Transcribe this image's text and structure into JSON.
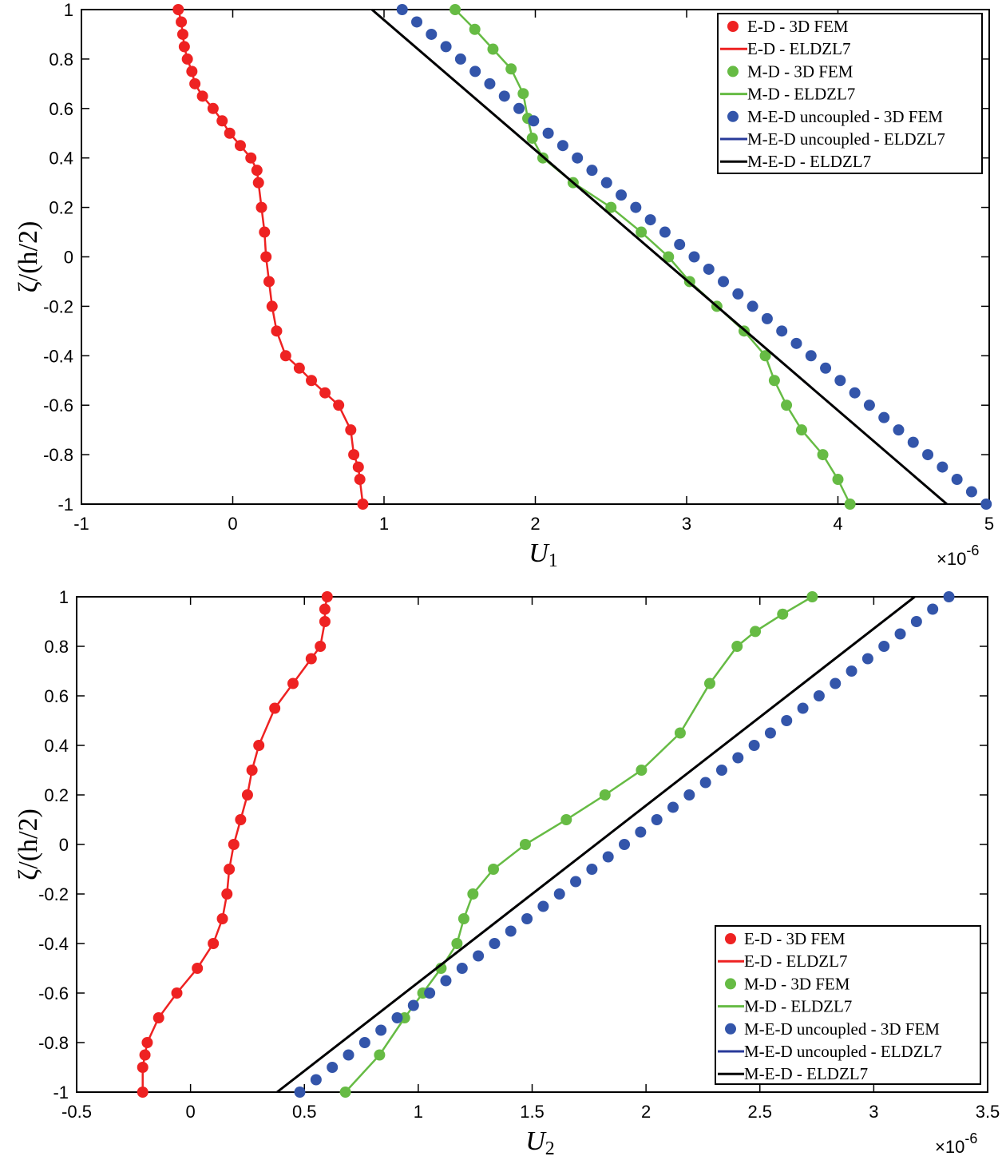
{
  "chart_data": [
    {
      "type": "line",
      "xlabel": "U",
      "xlabel_sub": "1",
      "ylabel": "ζ/(h/2)",
      "xlim": [
        -1,
        5
      ],
      "ylim": [
        -1,
        1
      ],
      "xticks": [
        "-1",
        "0",
        "1",
        "2",
        "3",
        "4",
        "5"
      ],
      "xtick_values": [
        -1,
        0,
        1,
        2,
        3,
        4,
        5
      ],
      "yticks": [
        "-1",
        "-0.8",
        "-0.6",
        "-0.4",
        "-0.2",
        "0",
        "0.2",
        "0.4",
        "0.6",
        "0.8",
        "1"
      ],
      "ytick_values": [
        -1,
        -0.8,
        -0.6,
        -0.4,
        -0.2,
        0,
        0.2,
        0.4,
        0.6,
        0.8,
        1
      ],
      "x_exponent_prefix": "×10",
      "x_exponent": "-6",
      "grid": false,
      "legend_position": "top-right",
      "series": [
        {
          "name": "E-D - 3D FEM",
          "kind": "markers",
          "color": "#ee2222",
          "x": [
            -0.36,
            -0.34,
            -0.33,
            -0.32,
            -0.3,
            -0.27,
            -0.25,
            -0.2,
            -0.13,
            -0.07,
            -0.02,
            0.05,
            0.12,
            0.16,
            0.17,
            0.19,
            0.21,
            0.22,
            0.24,
            0.26,
            0.29,
            0.35,
            0.44,
            0.52,
            0.61,
            0.7,
            0.78,
            0.8,
            0.83,
            0.84,
            0.86
          ],
          "y": [
            1,
            0.95,
            0.9,
            0.85,
            0.8,
            0.75,
            0.7,
            0.65,
            0.6,
            0.55,
            0.5,
            0.45,
            0.4,
            0.35,
            0.3,
            0.2,
            0.1,
            0,
            -0.1,
            -0.2,
            -0.3,
            -0.4,
            -0.45,
            -0.5,
            -0.55,
            -0.6,
            -0.7,
            -0.8,
            -0.85,
            -0.9,
            -1
          ]
        },
        {
          "name": "E-D - ELDZL7",
          "kind": "line",
          "color": "#ee2222",
          "x": [
            -0.36,
            -0.34,
            -0.33,
            -0.32,
            -0.3,
            -0.27,
            -0.25,
            -0.2,
            -0.13,
            -0.07,
            -0.02,
            0.05,
            0.12,
            0.16,
            0.17,
            0.19,
            0.21,
            0.22,
            0.24,
            0.26,
            0.29,
            0.35,
            0.44,
            0.52,
            0.61,
            0.7,
            0.78,
            0.8,
            0.83,
            0.84,
            0.86
          ],
          "y": [
            1,
            0.95,
            0.9,
            0.85,
            0.8,
            0.75,
            0.7,
            0.65,
            0.6,
            0.55,
            0.5,
            0.45,
            0.4,
            0.35,
            0.3,
            0.2,
            0.1,
            0,
            -0.1,
            -0.2,
            -0.3,
            -0.4,
            -0.45,
            -0.5,
            -0.55,
            -0.6,
            -0.7,
            -0.8,
            -0.85,
            -0.9,
            -1
          ]
        },
        {
          "name": "M-D - 3D FEM",
          "kind": "markers",
          "color": "#66bb44",
          "x": [
            1.47,
            1.6,
            1.72,
            1.84,
            1.92,
            1.95,
            1.98,
            2.05,
            2.25,
            2.5,
            2.7,
            2.88,
            3.02,
            3.2,
            3.38,
            3.52,
            3.58,
            3.66,
            3.76,
            3.9,
            4.0,
            4.08
          ],
          "y": [
            1,
            0.92,
            0.84,
            0.76,
            0.66,
            0.56,
            0.48,
            0.4,
            0.3,
            0.2,
            0.1,
            0,
            -0.1,
            -0.2,
            -0.3,
            -0.4,
            -0.5,
            -0.6,
            -0.7,
            -0.8,
            -0.9,
            -1
          ]
        },
        {
          "name": "M-D - ELDZL7",
          "kind": "line",
          "color": "#66bb44",
          "x": [
            1.47,
            1.6,
            1.72,
            1.84,
            1.92,
            1.95,
            1.98,
            2.05,
            2.25,
            2.5,
            2.7,
            2.88,
            3.02,
            3.2,
            3.38,
            3.52,
            3.58,
            3.66,
            3.76,
            3.9,
            4.0,
            4.08
          ],
          "y": [
            1,
            0.92,
            0.84,
            0.76,
            0.66,
            0.56,
            0.48,
            0.4,
            0.3,
            0.2,
            0.1,
            0,
            -0.1,
            -0.2,
            -0.3,
            -0.4,
            -0.5,
            -0.6,
            -0.7,
            -0.8,
            -0.9,
            -1
          ]
        },
        {
          "name": "M-E-D uncoupled - 3D FEM",
          "kind": "markers",
          "color": "#3355aa",
          "x": [
            1.12,
            4.98
          ],
          "y": [
            1,
            -1
          ],
          "linear_points": 41
        },
        {
          "name": "M-E-D uncoupled - ELDZL7",
          "kind": "line",
          "color": "#283a9a",
          "x": [
            0.92,
            4.72
          ],
          "y": [
            1,
            -1
          ]
        },
        {
          "name": "M-E-D - ELDZL7",
          "kind": "line",
          "color": "#000000",
          "x": [
            0.92,
            4.72
          ],
          "y": [
            1,
            -1
          ]
        }
      ]
    },
    {
      "type": "line",
      "xlabel": "U",
      "xlabel_sub": "2",
      "ylabel": "ζ/(h/2)",
      "xlim": [
        -0.5,
        3.5
      ],
      "ylim": [
        -1,
        1
      ],
      "xticks": [
        "-0.5",
        "0",
        "0.5",
        "1",
        "1.5",
        "2",
        "2.5",
        "3",
        "3.5"
      ],
      "xtick_values": [
        -0.5,
        0,
        0.5,
        1,
        1.5,
        2,
        2.5,
        3,
        3.5
      ],
      "yticks": [
        "-1",
        "-0.8",
        "-0.6",
        "-0.4",
        "-0.2",
        "0",
        "0.2",
        "0.4",
        "0.6",
        "0.8",
        "1"
      ],
      "ytick_values": [
        -1,
        -0.8,
        -0.6,
        -0.4,
        -0.2,
        0,
        0.2,
        0.4,
        0.6,
        0.8,
        1
      ],
      "x_exponent_prefix": "×10",
      "x_exponent": "-6",
      "grid": false,
      "legend_position": "bottom-right",
      "series": [
        {
          "name": "E-D - 3D FEM",
          "kind": "markers",
          "color": "#ee2222",
          "x": [
            0.6,
            0.59,
            0.59,
            0.57,
            0.53,
            0.45,
            0.37,
            0.3,
            0.27,
            0.25,
            0.22,
            0.19,
            0.17,
            0.16,
            0.14,
            0.1,
            0.03,
            -0.06,
            -0.14,
            -0.19,
            -0.2,
            -0.21,
            -0.21
          ],
          "y": [
            1,
            0.95,
            0.9,
            0.8,
            0.75,
            0.65,
            0.55,
            0.4,
            0.3,
            0.2,
            0.1,
            0,
            -0.1,
            -0.2,
            -0.3,
            -0.4,
            -0.5,
            -0.6,
            -0.7,
            -0.8,
            -0.85,
            -0.9,
            -1
          ]
        },
        {
          "name": "E-D - ELDZL7",
          "kind": "line",
          "color": "#ee2222",
          "x": [
            0.6,
            0.59,
            0.59,
            0.57,
            0.53,
            0.45,
            0.37,
            0.3,
            0.27,
            0.25,
            0.22,
            0.19,
            0.17,
            0.16,
            0.14,
            0.1,
            0.03,
            -0.06,
            -0.14,
            -0.19,
            -0.2,
            -0.21,
            -0.21
          ],
          "y": [
            1,
            0.95,
            0.9,
            0.8,
            0.75,
            0.65,
            0.55,
            0.4,
            0.3,
            0.2,
            0.1,
            0,
            -0.1,
            -0.2,
            -0.3,
            -0.4,
            -0.5,
            -0.6,
            -0.7,
            -0.8,
            -0.85,
            -0.9,
            -1
          ]
        },
        {
          "name": "M-D - 3D FEM",
          "kind": "markers",
          "color": "#66bb44",
          "x": [
            2.73,
            2.6,
            2.48,
            2.4,
            2.28,
            2.15,
            1.98,
            1.82,
            1.65,
            1.47,
            1.33,
            1.24,
            1.2,
            1.17,
            1.1,
            1.02,
            0.94,
            0.83,
            0.68
          ],
          "y": [
            1,
            0.93,
            0.86,
            0.8,
            0.65,
            0.45,
            0.3,
            0.2,
            0.1,
            0,
            -0.1,
            -0.2,
            -0.3,
            -0.4,
            -0.5,
            -0.6,
            -0.7,
            -0.85,
            -1
          ]
        },
        {
          "name": "M-D - ELDZL7",
          "kind": "line",
          "color": "#66bb44",
          "x": [
            2.73,
            2.6,
            2.48,
            2.4,
            2.28,
            2.15,
            1.98,
            1.82,
            1.65,
            1.47,
            1.33,
            1.24,
            1.2,
            1.17,
            1.1,
            1.02,
            0.94,
            0.83,
            0.68
          ],
          "y": [
            1,
            0.93,
            0.86,
            0.8,
            0.65,
            0.45,
            0.3,
            0.2,
            0.1,
            0,
            -0.1,
            -0.2,
            -0.3,
            -0.4,
            -0.5,
            -0.6,
            -0.7,
            -0.85,
            -1
          ]
        },
        {
          "name": "M-E-D uncoupled - 3D FEM",
          "kind": "markers",
          "color": "#3355aa",
          "x": [
            3.33,
            0.48
          ],
          "y": [
            1,
            -1
          ],
          "linear_points": 41
        },
        {
          "name": "M-E-D uncoupled - ELDZL7",
          "kind": "line",
          "color": "#283a9a",
          "x": [
            3.18,
            0.38
          ],
          "y": [
            1,
            -1
          ]
        },
        {
          "name": "M-E-D - ELDZL7",
          "kind": "line",
          "color": "#000000",
          "x": [
            3.18,
            0.38
          ],
          "y": [
            1,
            -1
          ]
        }
      ]
    }
  ]
}
